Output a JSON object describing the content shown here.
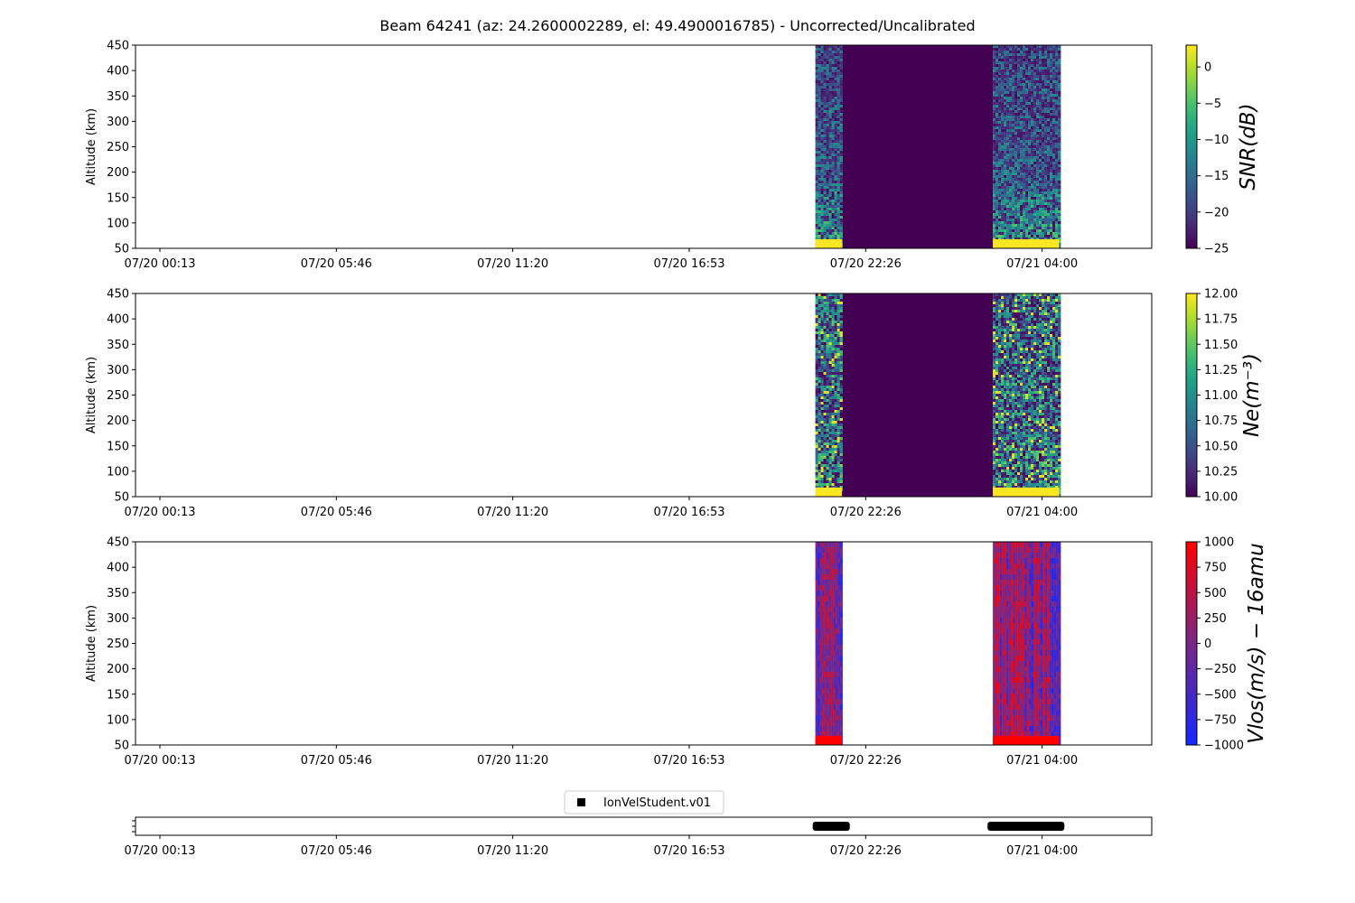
{
  "title": "Beam 64241 (az: 24.2600002289, el: 49.4900016785) - Uncorrected/Uncalibrated",
  "time_ticks": [
    "07/20 00:13",
    "07/20 05:46",
    "07/20 11:20",
    "07/20 16:53",
    "07/20 22:26",
    "07/21 04:00"
  ],
  "colors": {
    "fill_dark": "#440154",
    "low_band": "#fde725",
    "vlos_low_band": "#ff0000"
  },
  "chart_data": [
    {
      "type": "heatmap",
      "panel": "snr",
      "ylabel": "Altitude (km)",
      "ylim": [
        50,
        450
      ],
      "yticks": [
        50,
        100,
        150,
        200,
        250,
        300,
        350,
        400,
        450
      ],
      "colormap": "viridis",
      "colorbar_label": "SNR(dB)",
      "colorbar_range": [
        -25,
        3
      ],
      "colorbar_ticks": [
        "0",
        "−5",
        "−10",
        "−15",
        "−20",
        "−25"
      ],
      "colorbar_tick_values": [
        0,
        -5,
        -10,
        -15,
        -20,
        -25
      ],
      "data_blocks": [
        {
          "start": "07/20 20:50",
          "end": "07/20 21:40",
          "range_km": [
            50,
            450
          ]
        },
        {
          "start": "07/21 02:25",
          "end": "07/21 04:30",
          "range_km": [
            50,
            450
          ]
        }
      ],
      "gap_fill": {
        "start": "07/20 21:40",
        "end": "07/21 02:25",
        "value": -25
      },
      "low_band_km": [
        50,
        68
      ]
    },
    {
      "type": "heatmap",
      "panel": "ne",
      "ylabel": "Altitude (km)",
      "ylim": [
        50,
        450
      ],
      "yticks": [
        50,
        100,
        150,
        200,
        250,
        300,
        350,
        400,
        450
      ],
      "colormap": "viridis",
      "colorbar_label": "Ne(m⁻³)",
      "colorbar_range": [
        10.0,
        12.0
      ],
      "colorbar_ticks": [
        "12.00",
        "11.75",
        "11.50",
        "11.25",
        "11.00",
        "10.75",
        "10.50",
        "10.25",
        "10.00"
      ],
      "colorbar_tick_values": [
        12.0,
        11.75,
        11.5,
        11.25,
        11.0,
        10.75,
        10.5,
        10.25,
        10.0
      ],
      "data_blocks": [
        {
          "start": "07/20 20:50",
          "end": "07/20 21:40",
          "range_km": [
            50,
            450
          ]
        },
        {
          "start": "07/21 02:25",
          "end": "07/21 04:30",
          "range_km": [
            50,
            450
          ]
        }
      ],
      "gap_fill": {
        "start": "07/20 21:40",
        "end": "07/21 02:25",
        "value": 10.0
      },
      "low_band_km": [
        50,
        68
      ]
    },
    {
      "type": "heatmap",
      "panel": "vlos",
      "ylabel": "Altitude (km)",
      "ylim": [
        50,
        450
      ],
      "yticks": [
        50,
        100,
        150,
        200,
        250,
        300,
        350,
        400,
        450
      ],
      "colormap": "bwr",
      "colorbar_label": "Vlos(m/s) − 16amu",
      "colorbar_range": [
        -1000,
        1000
      ],
      "colorbar_ticks": [
        "1000",
        "750",
        "500",
        "250",
        "0",
        "−250",
        "−500",
        "−750",
        "−1000"
      ],
      "colorbar_tick_values": [
        1000,
        750,
        500,
        250,
        0,
        -250,
        -500,
        -750,
        -1000
      ],
      "data_blocks": [
        {
          "start": "07/20 20:50",
          "end": "07/20 21:40",
          "range_km": [
            50,
            450
          ]
        },
        {
          "start": "07/21 02:25",
          "end": "07/21 04:30",
          "range_km": [
            50,
            450
          ]
        }
      ],
      "low_band_km": [
        50,
        68
      ]
    },
    {
      "type": "scatter",
      "panel": "presence",
      "legend": "IonVelStudent.v01",
      "legend_position": "top-center",
      "marker_color": "#000000",
      "segments": [
        {
          "start": "07/20 20:45",
          "end": "07/20 21:55"
        },
        {
          "start": "07/21 02:15",
          "end": "07/21 04:40"
        }
      ]
    }
  ]
}
